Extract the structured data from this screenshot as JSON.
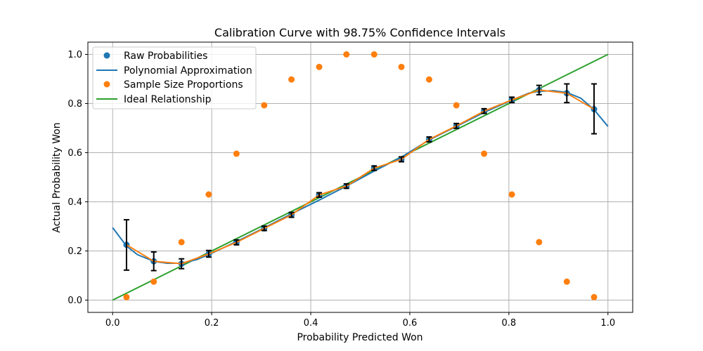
{
  "chart_data": {
    "type": "scatter",
    "title": "Calibration Curve with 98.75% Confidence Intervals",
    "xlabel": "Probability Predicted Won",
    "ylabel": "Actual Probability Won",
    "xlim": [
      -0.05,
      1.05
    ],
    "ylim": [
      -0.05,
      1.05
    ],
    "xticks": [
      0.0,
      0.2,
      0.4,
      0.6,
      0.8,
      1.0
    ],
    "xtick_labels": [
      "0.0",
      "0.2",
      "0.4",
      "0.6",
      "0.8",
      "1.0"
    ],
    "yticks": [
      0.0,
      0.2,
      0.4,
      0.6,
      0.8,
      1.0
    ],
    "ytick_labels": [
      "0.0",
      "0.2",
      "0.4",
      "0.6",
      "0.8",
      "1.0"
    ],
    "grid": true,
    "legend_position": "top-left",
    "colors": {
      "raw": "#1f77b4",
      "sample": "#ff7f0e",
      "ideal": "#2ca02c",
      "errorbar": "#000000",
      "grid": "#b0b0b0"
    },
    "legend": [
      {
        "label": "Raw Probabilities",
        "kind": "marker",
        "color": "#1f77b4"
      },
      {
        "label": "Polynomial Approximation",
        "kind": "line",
        "color": "#1f77b4"
      },
      {
        "label": "Sample Size Proportions",
        "kind": "marker",
        "color": "#ff7f0e"
      },
      {
        "label": "Ideal Relationship",
        "kind": "line",
        "color": "#2ca02c"
      }
    ],
    "series": [
      {
        "name": "Raw Probabilities",
        "kind": "scatter",
        "x": [
          0.028,
          0.083,
          0.139,
          0.194,
          0.25,
          0.306,
          0.361,
          0.417,
          0.472,
          0.528,
          0.583,
          0.639,
          0.694,
          0.75,
          0.806,
          0.861,
          0.917,
          0.972
        ],
        "y": [
          0.225,
          0.158,
          0.148,
          0.188,
          0.235,
          0.292,
          0.347,
          0.428,
          0.464,
          0.537,
          0.573,
          0.654,
          0.709,
          0.769,
          0.815,
          0.855,
          0.842,
          0.777
        ],
        "err_low": [
          0.122,
          0.12,
          0.128,
          0.175,
          0.225,
          0.283,
          0.337,
          0.419,
          0.455,
          0.528,
          0.563,
          0.644,
          0.699,
          0.76,
          0.804,
          0.836,
          0.804,
          0.677
        ],
        "err_high": [
          0.327,
          0.196,
          0.168,
          0.202,
          0.245,
          0.301,
          0.357,
          0.437,
          0.473,
          0.546,
          0.583,
          0.664,
          0.719,
          0.779,
          0.826,
          0.874,
          0.88,
          0.88
        ]
      },
      {
        "name": "Polynomial Approximation",
        "kind": "line",
        "x": [
          0.0,
          0.028,
          0.05,
          0.083,
          0.11,
          0.139,
          0.17,
          0.194,
          0.25,
          0.306,
          0.361,
          0.417,
          0.472,
          0.528,
          0.583,
          0.639,
          0.694,
          0.75,
          0.806,
          0.84,
          0.861,
          0.89,
          0.917,
          0.945,
          0.972,
          1.0
        ],
        "y": [
          0.295,
          0.22,
          0.185,
          0.158,
          0.15,
          0.15,
          0.165,
          0.185,
          0.238,
          0.294,
          0.351,
          0.407,
          0.464,
          0.525,
          0.582,
          0.652,
          0.707,
          0.764,
          0.814,
          0.842,
          0.85,
          0.852,
          0.845,
          0.822,
          0.775,
          0.707
        ]
      },
      {
        "name": "Sample Size Proportions",
        "kind": "scatter",
        "x": [
          0.028,
          0.083,
          0.139,
          0.194,
          0.25,
          0.306,
          0.361,
          0.417,
          0.472,
          0.528,
          0.583,
          0.639,
          0.694,
          0.75,
          0.806,
          0.861,
          0.917,
          0.972
        ],
        "y": [
          0.012,
          0.075,
          0.236,
          0.43,
          0.596,
          0.793,
          0.898,
          0.949,
          1.0,
          1.0,
          0.949,
          0.898,
          0.793,
          0.596,
          0.43,
          0.236,
          0.075,
          0.012
        ]
      },
      {
        "name": "Ideal Relationship",
        "kind": "line",
        "x": [
          0.0,
          1.0
        ],
        "y": [
          0.0,
          1.0
        ]
      }
    ]
  }
}
